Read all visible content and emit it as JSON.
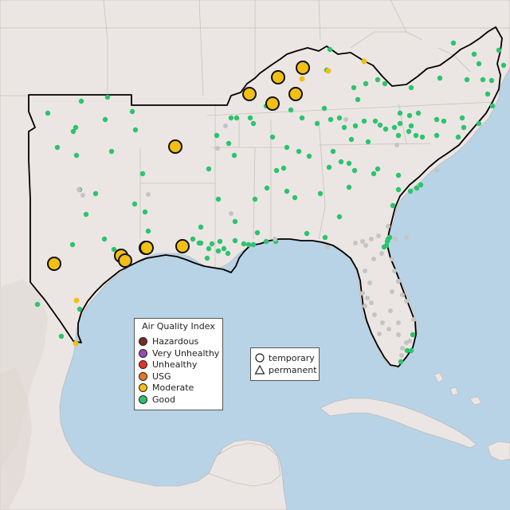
{
  "map": {
    "region": "southeastern-us-gulf-coast",
    "colors": {
      "water": "#b8d3e6",
      "land": "#ebe6e3",
      "highlighted_region": "#e8e5e1",
      "state_borders": "#c8c2bd",
      "region_outline": "#000000",
      "mexico_relief": "#e2dcd7"
    },
    "category_colors": {
      "Good": "#2bc46c",
      "Moderate": "#f2c014",
      "USG": "#e87722",
      "Unhealthy": "#e0352a",
      "Very Unhealthy": "#8f4fb0",
      "Hazardous": "#7a2a28",
      "No data": "#c4c4c4"
    },
    "stations": {
      "moderate_large": 12,
      "moderate_small": 5,
      "good_small": 230,
      "no_data_small": 45
    }
  },
  "aqi_legend": {
    "title": "Air Quality Index",
    "items": [
      {
        "label": "Hazardous",
        "color": "#7a2a28"
      },
      {
        "label": "Very Unhealthy",
        "color": "#8f4fb0"
      },
      {
        "label": "Unhealthy",
        "color": "#e0352a"
      },
      {
        "label": "USG",
        "color": "#e87722"
      },
      {
        "label": "Moderate",
        "color": "#f2c014"
      },
      {
        "label": "Good",
        "color": "#2bc46c"
      }
    ]
  },
  "shape_legend": {
    "items": [
      {
        "label": "temporary",
        "shape": "circle-icon"
      },
      {
        "label": "permanent",
        "shape": "triangle-icon"
      }
    ]
  }
}
